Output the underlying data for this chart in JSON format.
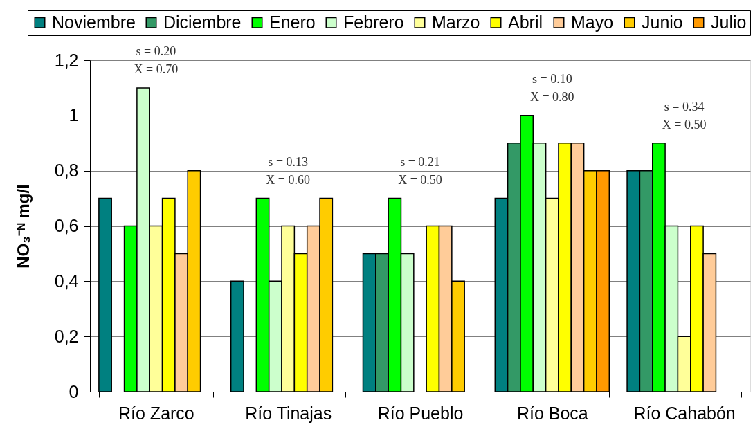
{
  "chart_data": {
    "type": "bar",
    "categories": [
      "Río Zarco",
      "Río Tinajas",
      "Río Pueblo",
      "Río Boca",
      "Río Cahabón"
    ],
    "ylabel": "NO₃⁻ᴺ mg/l",
    "series": [
      {
        "name": "Noviembre",
        "color": "#008080",
        "values": [
          0.7,
          0.4,
          0.5,
          0.7,
          0.8
        ]
      },
      {
        "name": "Diciembre",
        "color": "#339966",
        "values": [
          null,
          null,
          0.5,
          0.9,
          0.8
        ]
      },
      {
        "name": "Enero",
        "color": "#00ff00",
        "values": [
          0.6,
          0.7,
          0.7,
          1.0,
          0.9
        ]
      },
      {
        "name": "Febrero",
        "color": "#ccffcc",
        "values": [
          1.1,
          0.4,
          0.5,
          0.9,
          0.6
        ]
      },
      {
        "name": "Marzo",
        "color": "#ffff99",
        "values": [
          0.6,
          0.6,
          null,
          0.7,
          0.2
        ]
      },
      {
        "name": "Abril",
        "color": "#ffff00",
        "values": [
          0.7,
          0.5,
          0.6,
          0.9,
          0.6
        ]
      },
      {
        "name": "Mayo",
        "color": "#ffcc99",
        "values": [
          0.5,
          0.6,
          0.6,
          0.9,
          0.5
        ]
      },
      {
        "name": "Junio",
        "color": "#ffcc00",
        "values": [
          0.8,
          0.7,
          0.4,
          0.8,
          null
        ]
      },
      {
        "name": "Julio",
        "color": "#ff9900",
        "values": [
          null,
          null,
          null,
          0.8,
          null
        ]
      }
    ],
    "ylim": [
      0,
      1.2
    ],
    "yticks": [
      0,
      {
        "value": 0.2,
        "label": "0,2"
      },
      {
        "value": 0.4,
        "label": "0,4"
      },
      {
        "value": 0.6,
        "label": "0,6"
      },
      {
        "value": 0.8,
        "label": "0,8"
      },
      1,
      {
        "value": 1.2,
        "label": "1,2"
      }
    ],
    "grid": "y",
    "legend": "top",
    "annotations": [
      "s = 0.20",
      "X = 0.70",
      "s = 0.13",
      "X = 0.60",
      "s = 0.21",
      "X = 0.50",
      "s = 0.10",
      "X = 0.80",
      "s = 0.34",
      "X = 0.50"
    ]
  }
}
